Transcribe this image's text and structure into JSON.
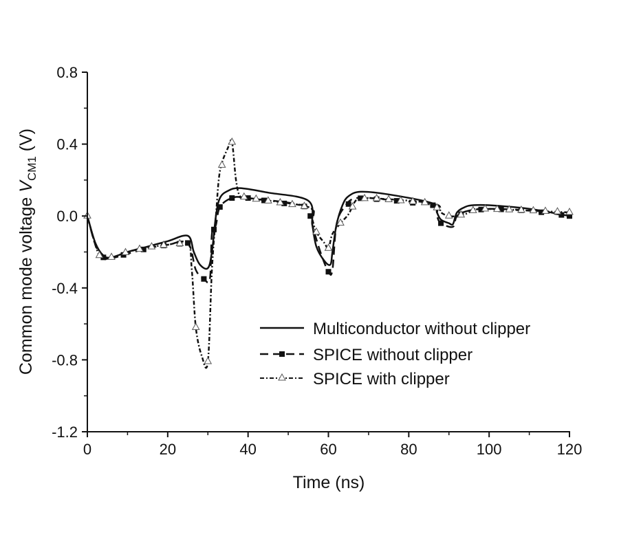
{
  "chart_data": {
    "type": "line",
    "xlabel": "Time (ns)",
    "ylabel": {
      "prefix": "Common mode voltage ",
      "var": "V",
      "sub": "CM1",
      "suffix": " (V)"
    },
    "xlim": [
      0,
      120
    ],
    "ylim": [
      -1.2,
      0.8
    ],
    "xticks": [
      0,
      20,
      40,
      60,
      80,
      100,
      120
    ],
    "xtick_labels": [
      "0",
      "20",
      "40",
      "60",
      "80",
      "100",
      "120"
    ],
    "yticks": [
      -1.2,
      -0.8,
      -0.4,
      0.0,
      0.4,
      0.8
    ],
    "ytick_labels": [
      "-1.2",
      "-0.8",
      "-0.4",
      "0.0",
      "0.4",
      "0.8"
    ],
    "grid": false,
    "legend_position": "bottom-right",
    "series": [
      {
        "name": "Multiconductor without clipper",
        "style": "solid",
        "marker": "none",
        "x": [
          0,
          2,
          4,
          6,
          10,
          15,
          20,
          25,
          26.5,
          28,
          30,
          31,
          32,
          33,
          35,
          38,
          45,
          55,
          56,
          57,
          59,
          60.5,
          61,
          62,
          63.5,
          65,
          68,
          75,
          86,
          87,
          88,
          90,
          91,
          92,
          94,
          96,
          100,
          110,
          120
        ],
        "y": [
          0,
          -0.15,
          -0.22,
          -0.23,
          -0.2,
          -0.17,
          -0.14,
          -0.11,
          -0.2,
          -0.27,
          -0.29,
          -0.2,
          0.0,
          0.1,
          0.14,
          0.155,
          0.13,
          0.085,
          -0.05,
          -0.17,
          -0.25,
          -0.27,
          -0.2,
          -0.05,
          0.06,
          0.11,
          0.135,
          0.12,
          0.07,
          0.02,
          -0.02,
          -0.04,
          -0.045,
          0.02,
          0.05,
          0.06,
          0.06,
          0.04,
          0.0
        ]
      },
      {
        "name": "SPICE without clipper",
        "style": "dashed",
        "marker": "square",
        "x": [
          0,
          2,
          4,
          6,
          10,
          15,
          20,
          25,
          27,
          29,
          30.5,
          31,
          32,
          33,
          36,
          40,
          55,
          56,
          58,
          60,
          61,
          62,
          64,
          67,
          75,
          86,
          87,
          88,
          91,
          92,
          95,
          100,
          110,
          120
        ],
        "y": [
          0,
          -0.16,
          -0.23,
          -0.235,
          -0.21,
          -0.18,
          -0.16,
          -0.15,
          -0.3,
          -0.35,
          -0.35,
          -0.1,
          -0.05,
          0.05,
          0.1,
          0.1,
          0.05,
          -0.05,
          -0.2,
          -0.31,
          -0.3,
          -0.05,
          0.05,
          0.1,
          0.09,
          0.06,
          0.0,
          -0.04,
          -0.06,
          0.0,
          0.03,
          0.04,
          0.03,
          0.0
        ],
        "markers_x": [
          4,
          9,
          14,
          19,
          23,
          25,
          29,
          31.5,
          33,
          36,
          40,
          44,
          49,
          54,
          55.5,
          60,
          65,
          68,
          72,
          77,
          81,
          86,
          88,
          93,
          98,
          103,
          108,
          113,
          118,
          120
        ]
      },
      {
        "name": "SPICE with clipper",
        "style": "dash-dot",
        "marker": "triangle",
        "x": [
          0,
          3,
          6,
          10,
          15,
          20,
          25,
          26,
          27,
          28.5,
          30,
          31,
          32,
          33,
          35,
          36,
          37,
          38,
          40,
          55,
          56,
          57,
          59,
          60,
          61,
          63,
          65,
          67,
          70,
          86,
          88,
          90,
          92,
          94,
          96,
          98,
          110,
          120
        ],
        "y": [
          0,
          -0.22,
          -0.23,
          -0.2,
          -0.175,
          -0.16,
          -0.15,
          -0.3,
          -0.62,
          -0.78,
          -0.81,
          -0.3,
          0.0,
          0.25,
          0.38,
          0.41,
          0.2,
          0.11,
          0.1,
          0.05,
          -0.02,
          -0.09,
          -0.15,
          -0.18,
          -0.1,
          -0.04,
          0.01,
          0.09,
          0.1,
          0.07,
          0.02,
          0.0,
          0.0,
          0.01,
          0.03,
          0.04,
          0.03,
          0.02
        ],
        "markers_x": [
          0,
          3,
          6,
          9.5,
          13,
          16,
          19,
          23,
          27,
          30,
          33.5,
          36,
          39,
          42,
          45,
          48,
          51,
          54,
          57,
          60,
          63,
          66,
          69,
          72,
          75,
          78,
          81,
          84,
          87,
          90,
          93,
          96,
          99,
          102,
          105,
          108,
          111,
          114,
          117,
          120
        ]
      }
    ]
  }
}
